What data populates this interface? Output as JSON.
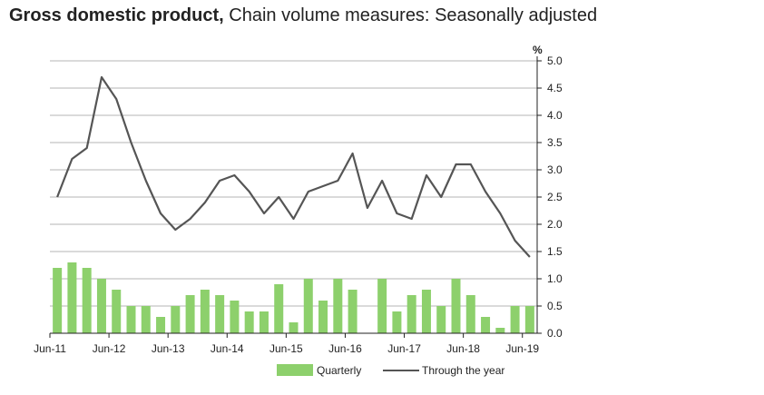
{
  "title": {
    "bold": "Gross domestic product,",
    "regular": "Chain volume measures:",
    "regular2": "Seasonally adjusted"
  },
  "chart_data": {
    "type": "bar+line",
    "unit": "%",
    "ylim": [
      0,
      5.0
    ],
    "yticks": [
      "5.0",
      "4.5",
      "4.0",
      "3.5",
      "3.0",
      "2.5",
      "2.0",
      "1.5",
      "1.0",
      "0.5",
      "0.0"
    ],
    "x_tick_labels": [
      "Jun-11",
      "Jun-12",
      "Jun-13",
      "Jun-14",
      "Jun-15",
      "Jun-16",
      "Jun-17",
      "Jun-18",
      "Jun-19"
    ],
    "grid": true,
    "legend_position": "bottom",
    "series": [
      {
        "name": "Quarterly",
        "kind": "bar",
        "color": "#8dd06c",
        "values": [
          1.2,
          1.3,
          1.2,
          1.0,
          0.8,
          0.5,
          0.5,
          0.3,
          0.5,
          0.7,
          0.8,
          0.7,
          0.6,
          0.4,
          0.4,
          0.9,
          0.2,
          1.0,
          0.6,
          1.0,
          0.8,
          0.0,
          1.0,
          0.4,
          0.7,
          0.8,
          0.5,
          1.0,
          0.7,
          0.3,
          0.1,
          0.5,
          0.5
        ]
      },
      {
        "name": "Through the year",
        "kind": "line",
        "color": "#555555",
        "values": [
          2.5,
          3.2,
          3.4,
          4.7,
          4.3,
          3.5,
          2.8,
          2.2,
          1.9,
          2.1,
          2.4,
          2.8,
          2.9,
          2.6,
          2.2,
          2.5,
          2.1,
          2.6,
          2.7,
          2.8,
          3.3,
          2.3,
          2.8,
          2.2,
          2.1,
          2.9,
          2.5,
          3.1,
          3.1,
          2.6,
          2.2,
          1.7,
          1.4
        ]
      }
    ]
  }
}
